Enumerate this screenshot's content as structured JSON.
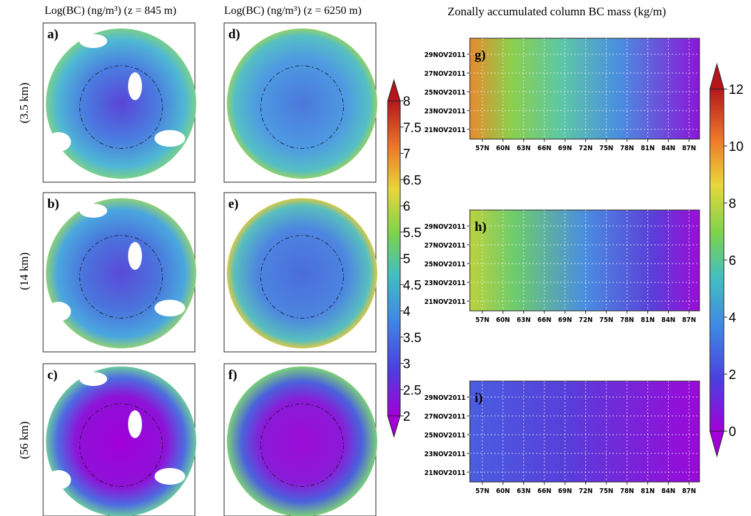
{
  "titles": [
    "Log(BC) (ng/m³) (z = 845 m)",
    "Log(BC) (ng/m³) (z = 6250 m)",
    "Zonally accumulated column BC mass (kg/m)"
  ],
  "row_labels": [
    "(3.5 km)",
    "(14 km)",
    "(56 km)"
  ],
  "map_panels": [
    "a)",
    "b)",
    "c)",
    "d)",
    "e)",
    "f)"
  ],
  "colorbar_left": {
    "lim": [
      2,
      8
    ],
    "ticks": [
      2,
      2.5,
      3,
      3.5,
      4,
      4.5,
      5,
      5.5,
      6,
      6.5,
      7,
      7.5,
      8
    ]
  },
  "hovmoller": {
    "panels": [
      "g)",
      "h)",
      "i)"
    ],
    "xticks": [
      "57N",
      "60N",
      "63N",
      "66N",
      "69N",
      "72N",
      "75N",
      "78N",
      "81N",
      "84N",
      "87N"
    ],
    "yticks": [
      "29NOV2011",
      "27NOV2011",
      "25NOV2011",
      "23NOV2011",
      "21NOV2011"
    ]
  },
  "colorbar_right": {
    "lim": [
      0,
      12
    ],
    "ticks": [
      0,
      2,
      4,
      6,
      8,
      10,
      12
    ]
  }
}
